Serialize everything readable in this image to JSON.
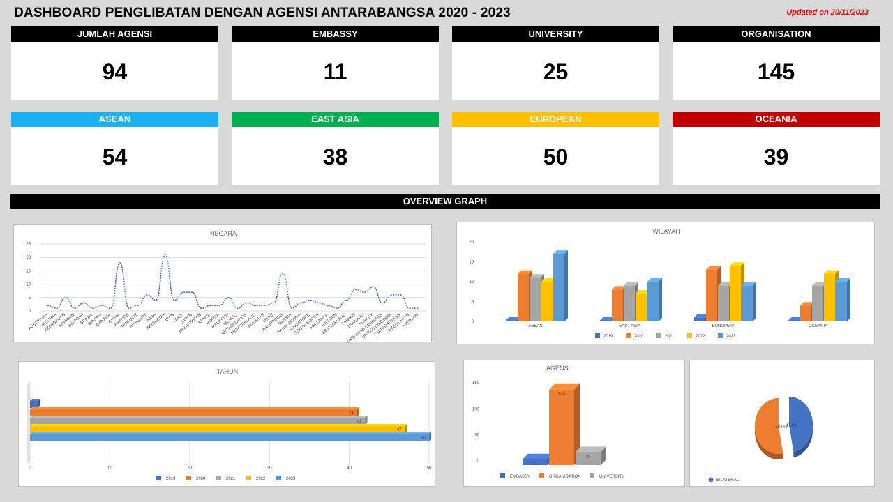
{
  "header": {
    "title": "DASHBOARD PENGLIBATAN DENGAN AGENSI ANTARABANGSA 2020 - 2023",
    "updated": "Updated on 20/11/2023"
  },
  "cards": [
    {
      "label": "JUMLAH AGENSI",
      "value": "94",
      "color": "#000000"
    },
    {
      "label": "EMBASSY",
      "value": "11",
      "color": "#000000"
    },
    {
      "label": "UNIVERSITY",
      "value": "25",
      "color": "#000000"
    },
    {
      "label": "ORGANISATION",
      "value": "145",
      "color": "#000000"
    },
    {
      "label": "ASEAN",
      "value": "54",
      "color": "#1cb0f0"
    },
    {
      "label": "EAST ASIA",
      "value": "38",
      "color": "#00b050"
    },
    {
      "label": "EUROPEAN",
      "value": "50",
      "color": "#ffc000"
    },
    {
      "label": "OCEANIA",
      "value": "39",
      "color": "#c00000"
    }
  ],
  "overview_label": "OVERVIEW GRAPH",
  "chart_data": [
    {
      "id": "negara",
      "type": "line",
      "title": "NEGARA",
      "ylim": [
        0,
        25
      ],
      "yticks": [
        0,
        5,
        10,
        15,
        20,
        25
      ],
      "x": [
        "AUSTRALIA",
        "AUSTRIA",
        "AZERBAIJAN",
        "BAHRAIN",
        "BELGIUM",
        "BRAZIL",
        "BRUNEI",
        "CANADA",
        "CHINA",
        "FRANCE",
        "GERMANY",
        "HUNGARY",
        "INDIA",
        "INDONESIA",
        "IRAN",
        "ITALY",
        "JAPAN",
        "KAZAKHSTAN",
        "KENYA",
        "KOREA",
        "MALAYSIA",
        "MEXICO",
        "NETHERLANDS",
        "NEW ZEALAND",
        "PAKISTAN",
        "PERU",
        "PHILIPPINES",
        "RUSSIA",
        "SAUDI ARABIA",
        "SINGAPORE",
        "SOUTH KOREA",
        "SRI LANKA",
        "SWEDEN",
        "SWITZERLAND",
        "TAIWAN",
        "THAILAND",
        "TURKEY",
        "UNITED ARAB EMIRATES",
        "UNITED KINGDOM",
        "UNITED STATES",
        "UZBEKISTAN",
        "VIETNAM"
      ],
      "values": [
        2,
        1,
        5,
        1,
        3,
        1,
        2,
        1,
        18,
        1,
        2,
        6,
        4,
        21,
        4,
        7,
        7,
        1,
        2,
        2,
        5,
        1,
        3,
        2,
        2,
        3,
        14,
        1,
        3,
        4,
        3,
        2,
        1,
        4,
        8,
        7,
        9,
        3,
        6,
        6,
        1,
        1
      ],
      "color": "#4472c4"
    },
    {
      "id": "wilayah",
      "type": "bar",
      "title": "WILAYAH",
      "categories": [
        "ASEAN",
        "EAST ASIA",
        "EUROPEAN",
        "OCEANIA"
      ],
      "ylim": [
        0,
        20
      ],
      "yticks": [
        0,
        5,
        10,
        15,
        20
      ],
      "series": [
        {
          "name": "2019",
          "values": [
            0,
            0,
            1,
            0
          ],
          "color": "#4472c4"
        },
        {
          "name": "2020",
          "values": [
            12,
            8,
            13,
            4
          ],
          "color": "#ed7d31"
        },
        {
          "name": "2021",
          "values": [
            11,
            9,
            9,
            9
          ],
          "color": "#a5a5a5"
        },
        {
          "name": "2022",
          "values": [
            10,
            7,
            14,
            12
          ],
          "color": "#ffc000"
        },
        {
          "name": "2023",
          "values": [
            17,
            10,
            9,
            10
          ],
          "color": "#5b9bd5"
        }
      ]
    },
    {
      "id": "tahun",
      "type": "bar",
      "orientation": "horizontal",
      "title": "TAHUN",
      "xlim": [
        0,
        50
      ],
      "xticks": [
        0,
        10,
        20,
        30,
        40,
        50
      ],
      "series": [
        {
          "name": "2019",
          "value": 1,
          "color": "#4472c4"
        },
        {
          "name": "2020",
          "value": 41,
          "color": "#ed7d31"
        },
        {
          "name": "2021",
          "value": 42,
          "color": "#a5a5a5"
        },
        {
          "name": "2022",
          "value": 47,
          "color": "#ffc000"
        },
        {
          "name": "2023",
          "value": 50,
          "color": "#5b9bd5"
        }
      ]
    },
    {
      "id": "agensi",
      "type": "bar",
      "title": "AGENSI",
      "ylim": [
        0,
        150
      ],
      "yticks": [
        0,
        50,
        100,
        150
      ],
      "series": [
        {
          "name": "EMBASSY",
          "value": 11,
          "color": "#4472c4"
        },
        {
          "name": "ORGANISATION",
          "value": 145,
          "color": "#ed7d31"
        },
        {
          "name": "UNIVERSITY",
          "value": 25,
          "color": "#a5a5a5"
        }
      ]
    },
    {
      "id": "bilateral",
      "type": "pie",
      "slices": [
        {
          "label": "53.0%",
          "value": 53.0,
          "color": "#ed7d31"
        },
        {
          "label": "47.0%",
          "value": 47.0,
          "color": "#4472c4"
        }
      ],
      "legend": [
        {
          "name": "BILATERAL",
          "color": "#4472c4"
        }
      ]
    }
  ]
}
